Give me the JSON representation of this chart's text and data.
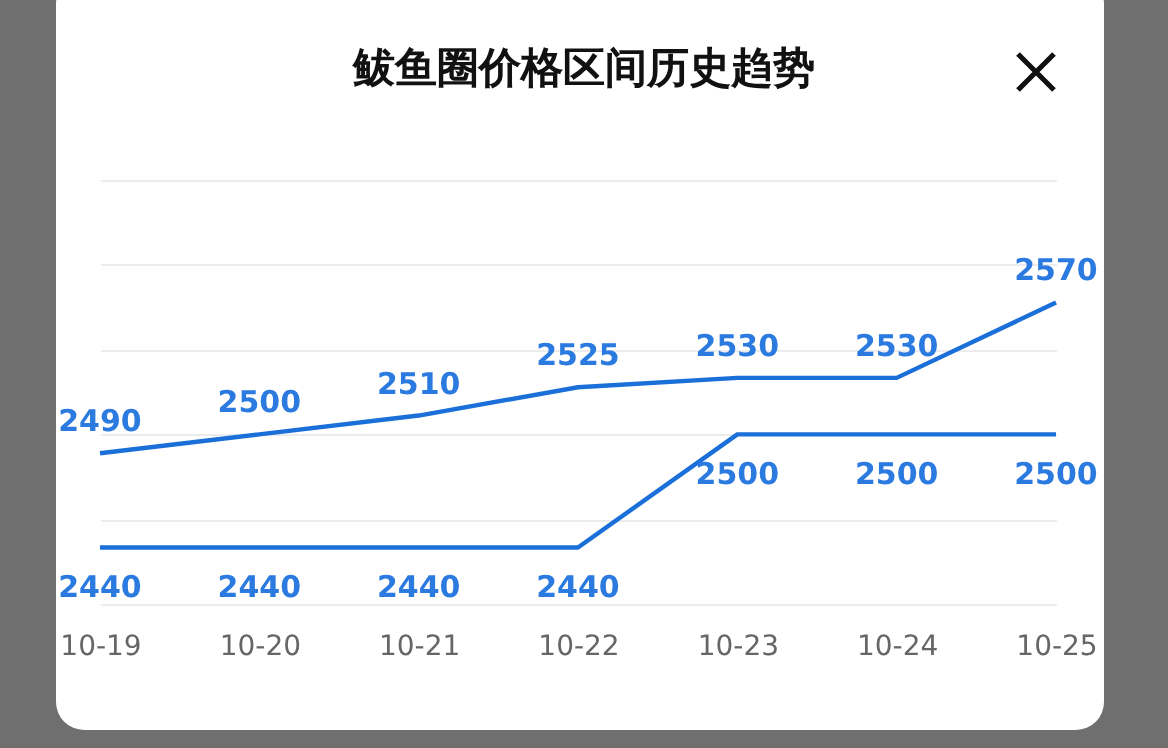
{
  "chart_data": {
    "type": "line",
    "title": "鲅鱼圈价格区间历史趋势",
    "categories": [
      "10-19",
      "10-20",
      "10-21",
      "10-22",
      "10-23",
      "10-24",
      "10-25"
    ],
    "series": [
      {
        "color": "#1a6fd8",
        "values": [
          2490,
          2500,
          2510,
          2525,
          2530,
          2530,
          2570
        ]
      },
      {
        "color": "#1a6fd8",
        "values": [
          2440,
          2440,
          2440,
          2440,
          2500,
          2500,
          2500
        ]
      }
    ],
    "ylim": [
      2410,
      2635
    ],
    "yticks": [
      {
        "value": 2410,
        "label": null
      },
      {
        "value": 2455,
        "label": null
      },
      {
        "value": 2500,
        "label": null
      },
      {
        "value": 2545,
        "label": null
      },
      {
        "value": 2590,
        "label": null
      },
      {
        "value": 2635,
        "label": null
      }
    ],
    "grid": "y",
    "data_labels": true,
    "marker": "none",
    "line_style": "solid",
    "tick_labels": "x"
  }
}
